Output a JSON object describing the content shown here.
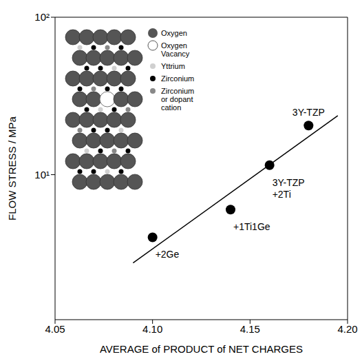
{
  "chart_data": {
    "type": "scatter",
    "x_label": "AVERAGE of PRODUCT of NET CHARGES",
    "y_label": "FLOW STRESS / MPa",
    "x": [
      4.1,
      4.14,
      4.16,
      4.18
    ],
    "values": [
      4,
      6,
      11.5,
      20.5
    ],
    "point_labels": [
      "+2Ge",
      "+1Ti1Ge",
      "3Y-TZP +2Ti",
      "3Y-TZP"
    ],
    "color": "#000000",
    "marker": "circle",
    "fit_line": {
      "x": [
        4.09,
        4.195
      ],
      "values": [
        2.75,
        23.7
      ],
      "color": "#000000"
    },
    "xlim": [
      4.05,
      4.2
    ],
    "ylim": [
      1.2,
      100
    ],
    "xticks": [
      4.05,
      {
        "value": 4.1,
        "label": "4.10"
      },
      4.15,
      {
        "value": 4.2,
        "label": "4.20"
      }
    ],
    "yticks": [
      {
        "value": 10,
        "label": "10¹"
      },
      {
        "value": 100,
        "label": "10²"
      }
    ],
    "log": "y",
    "grid": false,
    "inset_legend": [
      {
        "label": "Oxygen",
        "color": "#555555"
      },
      {
        "label": "Oxygen Vacancy",
        "color": "#ffffff"
      },
      {
        "label": "Yttrium",
        "color": "#d0d0d0"
      },
      {
        "label": "Zirconium",
        "color": "#000000"
      },
      {
        "label": "Zirconium or dopant cation",
        "color": "#888888"
      }
    ]
  }
}
